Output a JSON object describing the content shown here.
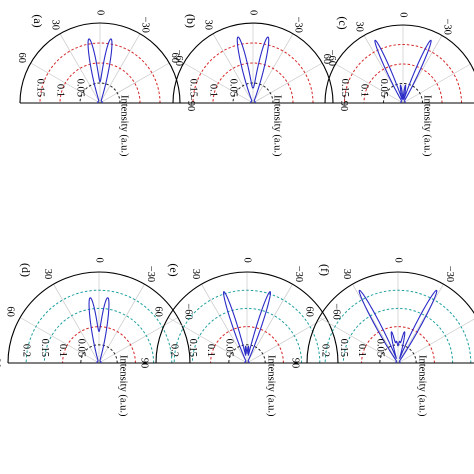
{
  "chart_data": [
    {
      "type": "polar",
      "panel_label": "(a)",
      "angle_ticks": [
        "60",
        "30",
        "0",
        "−30",
        "−60",
        "−90"
      ],
      "radial_ticks": [
        "0.05",
        "0.1",
        "0.15"
      ],
      "rlim": [
        0,
        0.2
      ],
      "ring_colors": [
        "#202020",
        "#d62728",
        "#d62728"
      ],
      "axis_label": "Intensity  (a.u.)",
      "line_color": "#2b2bc8",
      "lobes": [
        {
          "angle": 10,
          "intensity": 0.135,
          "width": 4
        },
        {
          "angle": -10,
          "intensity": 0.135,
          "width": 4
        },
        {
          "angle": 0,
          "intensity": 0.035,
          "width": 10
        }
      ]
    },
    {
      "type": "polar",
      "panel_label": "(b)",
      "angle_ticks": [
        "60",
        "30",
        "0",
        "−30",
        "−60",
        "−90"
      ],
      "radial_ticks": [
        "0.05",
        "0.1",
        "0.15"
      ],
      "rlim": [
        0,
        0.2
      ],
      "ring_colors": [
        "#202020",
        "#d62728",
        "#d62728"
      ],
      "axis_label": "Intensity  (a.u.)",
      "line_color": "#2b2bc8",
      "lobes": [
        {
          "angle": 13,
          "intensity": 0.15,
          "width": 4
        },
        {
          "angle": -13,
          "intensity": 0.15,
          "width": 4
        },
        {
          "angle": 0,
          "intensity": 0.03,
          "width": 10
        }
      ]
    },
    {
      "type": "polar",
      "panel_label": "(c)",
      "angle_ticks": [
        "60",
        "30",
        "0",
        "−30",
        "−60",
        "−90"
      ],
      "radial_ticks": [
        "0.05",
        "0.1",
        "0.15"
      ],
      "rlim": [
        0,
        0.2
      ],
      "ring_colors": [
        "#202020",
        "#d62728",
        "#d62728"
      ],
      "axis_label": "Intensity  (a.u.)",
      "line_color": "#2b2bc8",
      "lobes": [
        {
          "angle": 24,
          "intensity": 0.17,
          "width": 3
        },
        {
          "angle": -24,
          "intensity": 0.17,
          "width": 3
        },
        {
          "angle": 8,
          "intensity": 0.04,
          "width": 3
        },
        {
          "angle": -8,
          "intensity": 0.04,
          "width": 3
        }
      ]
    },
    {
      "type": "polar",
      "panel_label": "(d)",
      "angle_ticks": [
        "90",
        "60",
        "30",
        "0",
        "−30",
        "−60"
      ],
      "radial_ticks": [
        "0.05",
        "0.1",
        "0.15",
        "0.2"
      ],
      "rlim": [
        0,
        0.25
      ],
      "ring_colors": [
        "#202020",
        "#d62728",
        "#20a0a0",
        "#20a0a0"
      ],
      "axis_label": "Intensity  (a.u.)",
      "line_color": "#2b2bc8",
      "lobes": [
        {
          "angle": 8,
          "intensity": 0.15,
          "width": 4
        },
        {
          "angle": -8,
          "intensity": 0.15,
          "width": 4
        },
        {
          "angle": 0,
          "intensity": 0.04,
          "width": 8
        }
      ]
    },
    {
      "type": "polar",
      "panel_label": "(e)",
      "angle_ticks": [
        "90",
        "60",
        "30",
        "0",
        "−30",
        "−60"
      ],
      "radial_ticks": [
        "0.05",
        "0.1",
        "0.15",
        "0.2"
      ],
      "rlim": [
        0,
        0.25
      ],
      "ring_colors": [
        "#202020",
        "#d62728",
        "#20a0a0",
        "#20a0a0"
      ],
      "axis_label": "Intensity  (a.u.)",
      "line_color": "#2b2bc8",
      "lobes": [
        {
          "angle": 18,
          "intensity": 0.2,
          "width": 3
        },
        {
          "angle": -18,
          "intensity": 0.2,
          "width": 3
        },
        {
          "angle": 5,
          "intensity": 0.04,
          "width": 3
        },
        {
          "angle": -5,
          "intensity": 0.04,
          "width": 3
        }
      ]
    },
    {
      "type": "polar",
      "panel_label": "(f)",
      "angle_ticks": [
        "90",
        "60",
        "30",
        "0",
        "−30",
        "−60"
      ],
      "radial_ticks": [
        "0.05",
        "0.1",
        "0.15",
        "0.2"
      ],
      "rlim": [
        0,
        0.25
      ],
      "ring_colors": [
        "#202020",
        "#d62728",
        "#20a0a0",
        "#20a0a0"
      ],
      "axis_label": "Intensity  (a.u.)",
      "line_color": "#2b2bc8",
      "lobes": [
        {
          "angle": 28,
          "intensity": 0.22,
          "width": 3
        },
        {
          "angle": -28,
          "intensity": 0.22,
          "width": 3
        },
        {
          "angle": 12,
          "intensity": 0.08,
          "width": 3
        },
        {
          "angle": -12,
          "intensity": 0.08,
          "width": 3
        },
        {
          "angle": 4,
          "intensity": 0.05,
          "width": 3
        },
        {
          "angle": -4,
          "intensity": 0.05,
          "width": 3
        }
      ]
    }
  ]
}
